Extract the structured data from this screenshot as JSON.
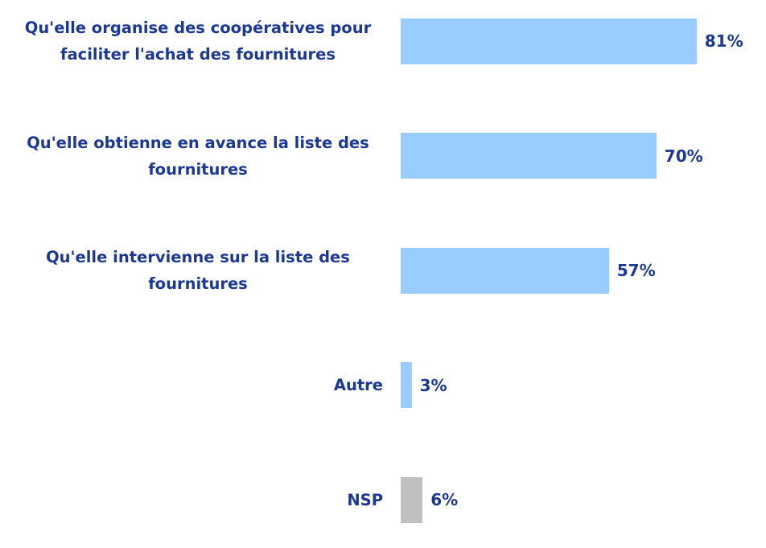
{
  "chart_data": {
    "type": "bar",
    "orientation": "horizontal",
    "categories": [
      "Qu'elle organise des coopératives pour faciliter l'achat des fournitures",
      "Qu'elle obtienne en avance la liste des fournitures",
      "Qu'elle intervienne sur la liste des fournitures",
      "Autre",
      "NSP"
    ],
    "values": [
      81,
      70,
      57,
      3,
      6
    ],
    "value_labels": [
      "81%",
      "70%",
      "57%",
      "3%",
      "6%"
    ],
    "colors": [
      "#99ccff",
      "#99ccff",
      "#99ccff",
      "#99ccff",
      "#c0c0c0"
    ]
  }
}
